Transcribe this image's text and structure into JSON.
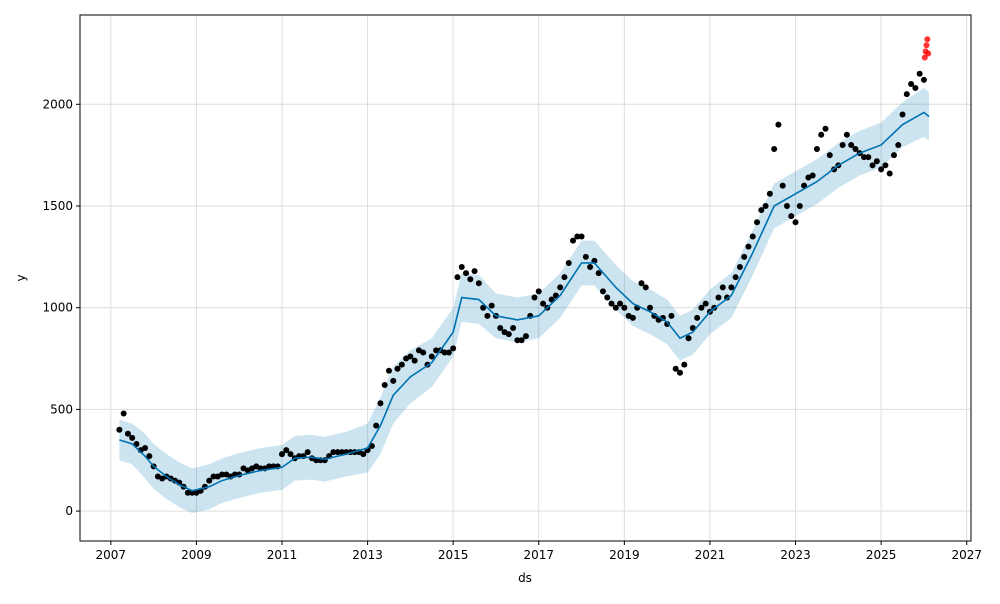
{
  "chart_data": {
    "type": "line",
    "title": "",
    "xlabel": "ds",
    "ylabel": "y",
    "xlim": [
      2006.28,
      2027.1
    ],
    "ylim": [
      -147,
      2439
    ],
    "grid": true,
    "x_ticks": [
      "2007",
      "2009",
      "2011",
      "2013",
      "2015",
      "2017",
      "2019",
      "2021",
      "2023",
      "2025",
      "2027"
    ],
    "y_ticks": [
      "0",
      "500",
      "1000",
      "1500",
      "2000"
    ],
    "colors": {
      "observed": "#000000",
      "forecast": "#0072B2",
      "interval": "#0072B2",
      "recent_actuals": "#ff0000",
      "grid": "#dddddd"
    },
    "forecast": {
      "x": [
        2007.2,
        2007.5,
        2007.8,
        2008.0,
        2008.3,
        2008.6,
        2008.9,
        2009.1,
        2009.3,
        2009.6,
        2010.0,
        2010.5,
        2011.0,
        2011.3,
        2011.7,
        2012.0,
        2012.5,
        2013.0,
        2013.3,
        2013.6,
        2014.0,
        2014.5,
        2015.0,
        2015.2,
        2015.6,
        2016.0,
        2016.5,
        2017.0,
        2017.5,
        2018.0,
        2018.3,
        2018.8,
        2019.2,
        2019.6,
        2020.0,
        2020.3,
        2020.6,
        2021.0,
        2021.5,
        2022.0,
        2022.5,
        2023.0,
        2023.5,
        2024.0,
        2024.5,
        2025.0,
        2025.5,
        2026.0,
        2026.12
      ],
      "yhat": [
        350,
        330,
        270,
        220,
        170,
        130,
        100,
        110,
        120,
        150,
        175,
        200,
        215,
        260,
        265,
        255,
        280,
        310,
        420,
        570,
        660,
        730,
        880,
        1050,
        1040,
        960,
        940,
        960,
        1060,
        1220,
        1220,
        1100,
        1020,
        980,
        930,
        850,
        880,
        980,
        1060,
        1270,
        1500,
        1560,
        1620,
        1700,
        1760,
        1800,
        1900,
        1960,
        1940
      ],
      "yhat_upper": [
        450,
        430,
        380,
        330,
        280,
        240,
        210,
        220,
        230,
        260,
        285,
        310,
        325,
        370,
        375,
        365,
        390,
        430,
        560,
        710,
        790,
        850,
        1000,
        1170,
        1160,
        1070,
        1050,
        1070,
        1170,
        1330,
        1330,
        1210,
        1130,
        1090,
        1040,
        960,
        990,
        1090,
        1170,
        1380,
        1610,
        1670,
        1730,
        1810,
        1870,
        1910,
        2010,
        2080,
        2060
      ],
      "yhat_lower": [
        250,
        230,
        160,
        110,
        60,
        20,
        -10,
        0,
        10,
        40,
        65,
        90,
        105,
        150,
        155,
        145,
        170,
        190,
        280,
        430,
        530,
        610,
        760,
        930,
        920,
        850,
        830,
        850,
        950,
        1110,
        1110,
        990,
        910,
        870,
        820,
        740,
        770,
        870,
        950,
        1160,
        1390,
        1450,
        1510,
        1590,
        1650,
        1690,
        1790,
        1840,
        1820
      ]
    },
    "observed": {
      "x_start": 2007.2,
      "x_step": 0.1,
      "y": [
        400,
        480,
        380,
        360,
        330,
        300,
        310,
        270,
        220,
        170,
        160,
        170,
        160,
        150,
        140,
        120,
        90,
        90,
        90,
        100,
        120,
        150,
        170,
        170,
        180,
        180,
        170,
        180,
        180,
        210,
        200,
        210,
        220,
        210,
        210,
        220,
        220,
        220,
        280,
        300,
        280,
        260,
        270,
        270,
        290,
        260,
        250,
        250,
        250,
        270,
        290,
        290,
        290,
        290,
        290,
        290,
        290,
        280,
        300,
        320,
        420,
        530,
        620,
        690,
        640,
        700,
        720,
        750,
        760,
        740,
        790,
        780,
        720,
        760,
        790,
        790,
        780,
        780,
        800,
        1150,
        1200,
        1170,
        1140,
        1180,
        1120,
        1000,
        960,
        1010,
        960,
        900,
        880,
        870,
        900,
        840,
        840,
        860,
        960,
        1050,
        1080,
        1020,
        1000,
        1040,
        1060,
        1100,
        1150,
        1220,
        1330,
        1350,
        1350,
        1250,
        1200,
        1230,
        1170,
        1080,
        1050,
        1020,
        1000,
        1020,
        1000,
        960,
        950,
        1000,
        1120,
        1100,
        1000,
        960,
        940,
        950,
        920,
        960,
        700,
        680,
        720,
        850,
        900,
        950,
        1000,
        1020,
        980,
        1000,
        1050,
        1100,
        1050,
        1100,
        1150,
        1200,
        1250,
        1300,
        1350,
        1420,
        1480,
        1500,
        1560,
        1780,
        1900,
        1600,
        1500,
        1450,
        1420,
        1500,
        1600,
        1640,
        1650,
        1780,
        1850,
        1880,
        1750,
        1680,
        1700,
        1800,
        1850,
        1800,
        1780,
        1760,
        1740,
        1740,
        1700,
        1720,
        1680,
        1700,
        1660,
        1750,
        1800,
        1950,
        2050,
        2100,
        2080,
        2150,
        2120
      ]
    },
    "recent_actuals": {
      "x": [
        2026.02,
        2026.04,
        2026.06,
        2026.08,
        2026.1
      ],
      "y": [
        2230,
        2260,
        2290,
        2320,
        2250
      ]
    }
  }
}
